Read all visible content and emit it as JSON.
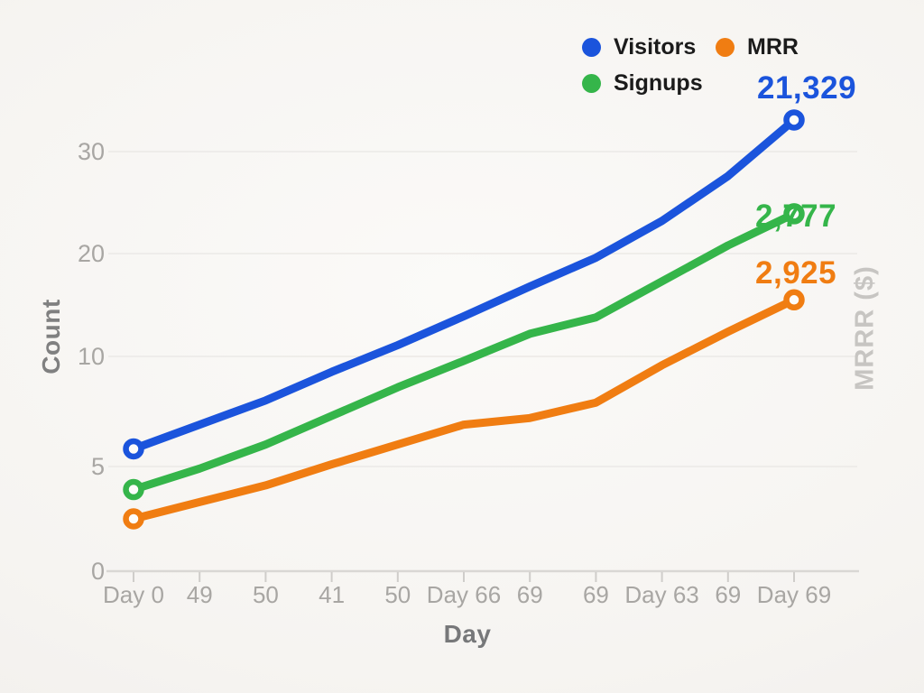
{
  "chart_data": {
    "type": "line",
    "title": "",
    "xlabel": "Day",
    "ylabel_left": "Count",
    "ylabel_right": "MRRR ($)",
    "grid": true,
    "legend_position": "top-right",
    "x_tick_labels": [
      "Day 0",
      "49",
      "50",
      "41",
      "50",
      "Day 66",
      "69",
      "69",
      "Day 63",
      "69",
      "Day 69"
    ],
    "y_tick_labels": [
      "0",
      "5",
      "10",
      "20",
      "30"
    ],
    "y_tick_values": [
      0,
      5,
      10,
      20,
      30
    ],
    "series": [
      {
        "name": "Visitors",
        "color": "#1b54dc",
        "end_label": "21,329",
        "values": [
          5.8,
          6.9,
          8.0,
          9.3,
          11.1,
          13.9,
          16.8,
          19.6,
          23.2,
          27.6,
          33.1
        ]
      },
      {
        "name": "Signups",
        "color": "#35b54a",
        "end_label": "2,777",
        "values": [
          3.9,
          4.9,
          6.0,
          7.3,
          8.6,
          9.8,
          12.2,
          13.8,
          17.3,
          20.8,
          23.9
        ]
      },
      {
        "name": "MRR",
        "color": "#f07d12",
        "end_label": "2,925",
        "values": [
          2.5,
          3.3,
          4.1,
          5.1,
          6.0,
          6.9,
          7.2,
          7.9,
          9.6,
          12.4,
          15.5
        ]
      }
    ],
    "theme": {
      "background": "#f6f4f1",
      "tick_label_color": "#a8a6a3",
      "axis_line_color": "#d9d7d4",
      "gridline_color": "#ebe9e6",
      "axis_title_color": "#77787a",
      "right_axis_title_color": "#c7c5c2",
      "legend_text_color": "#1b1b1b"
    }
  }
}
